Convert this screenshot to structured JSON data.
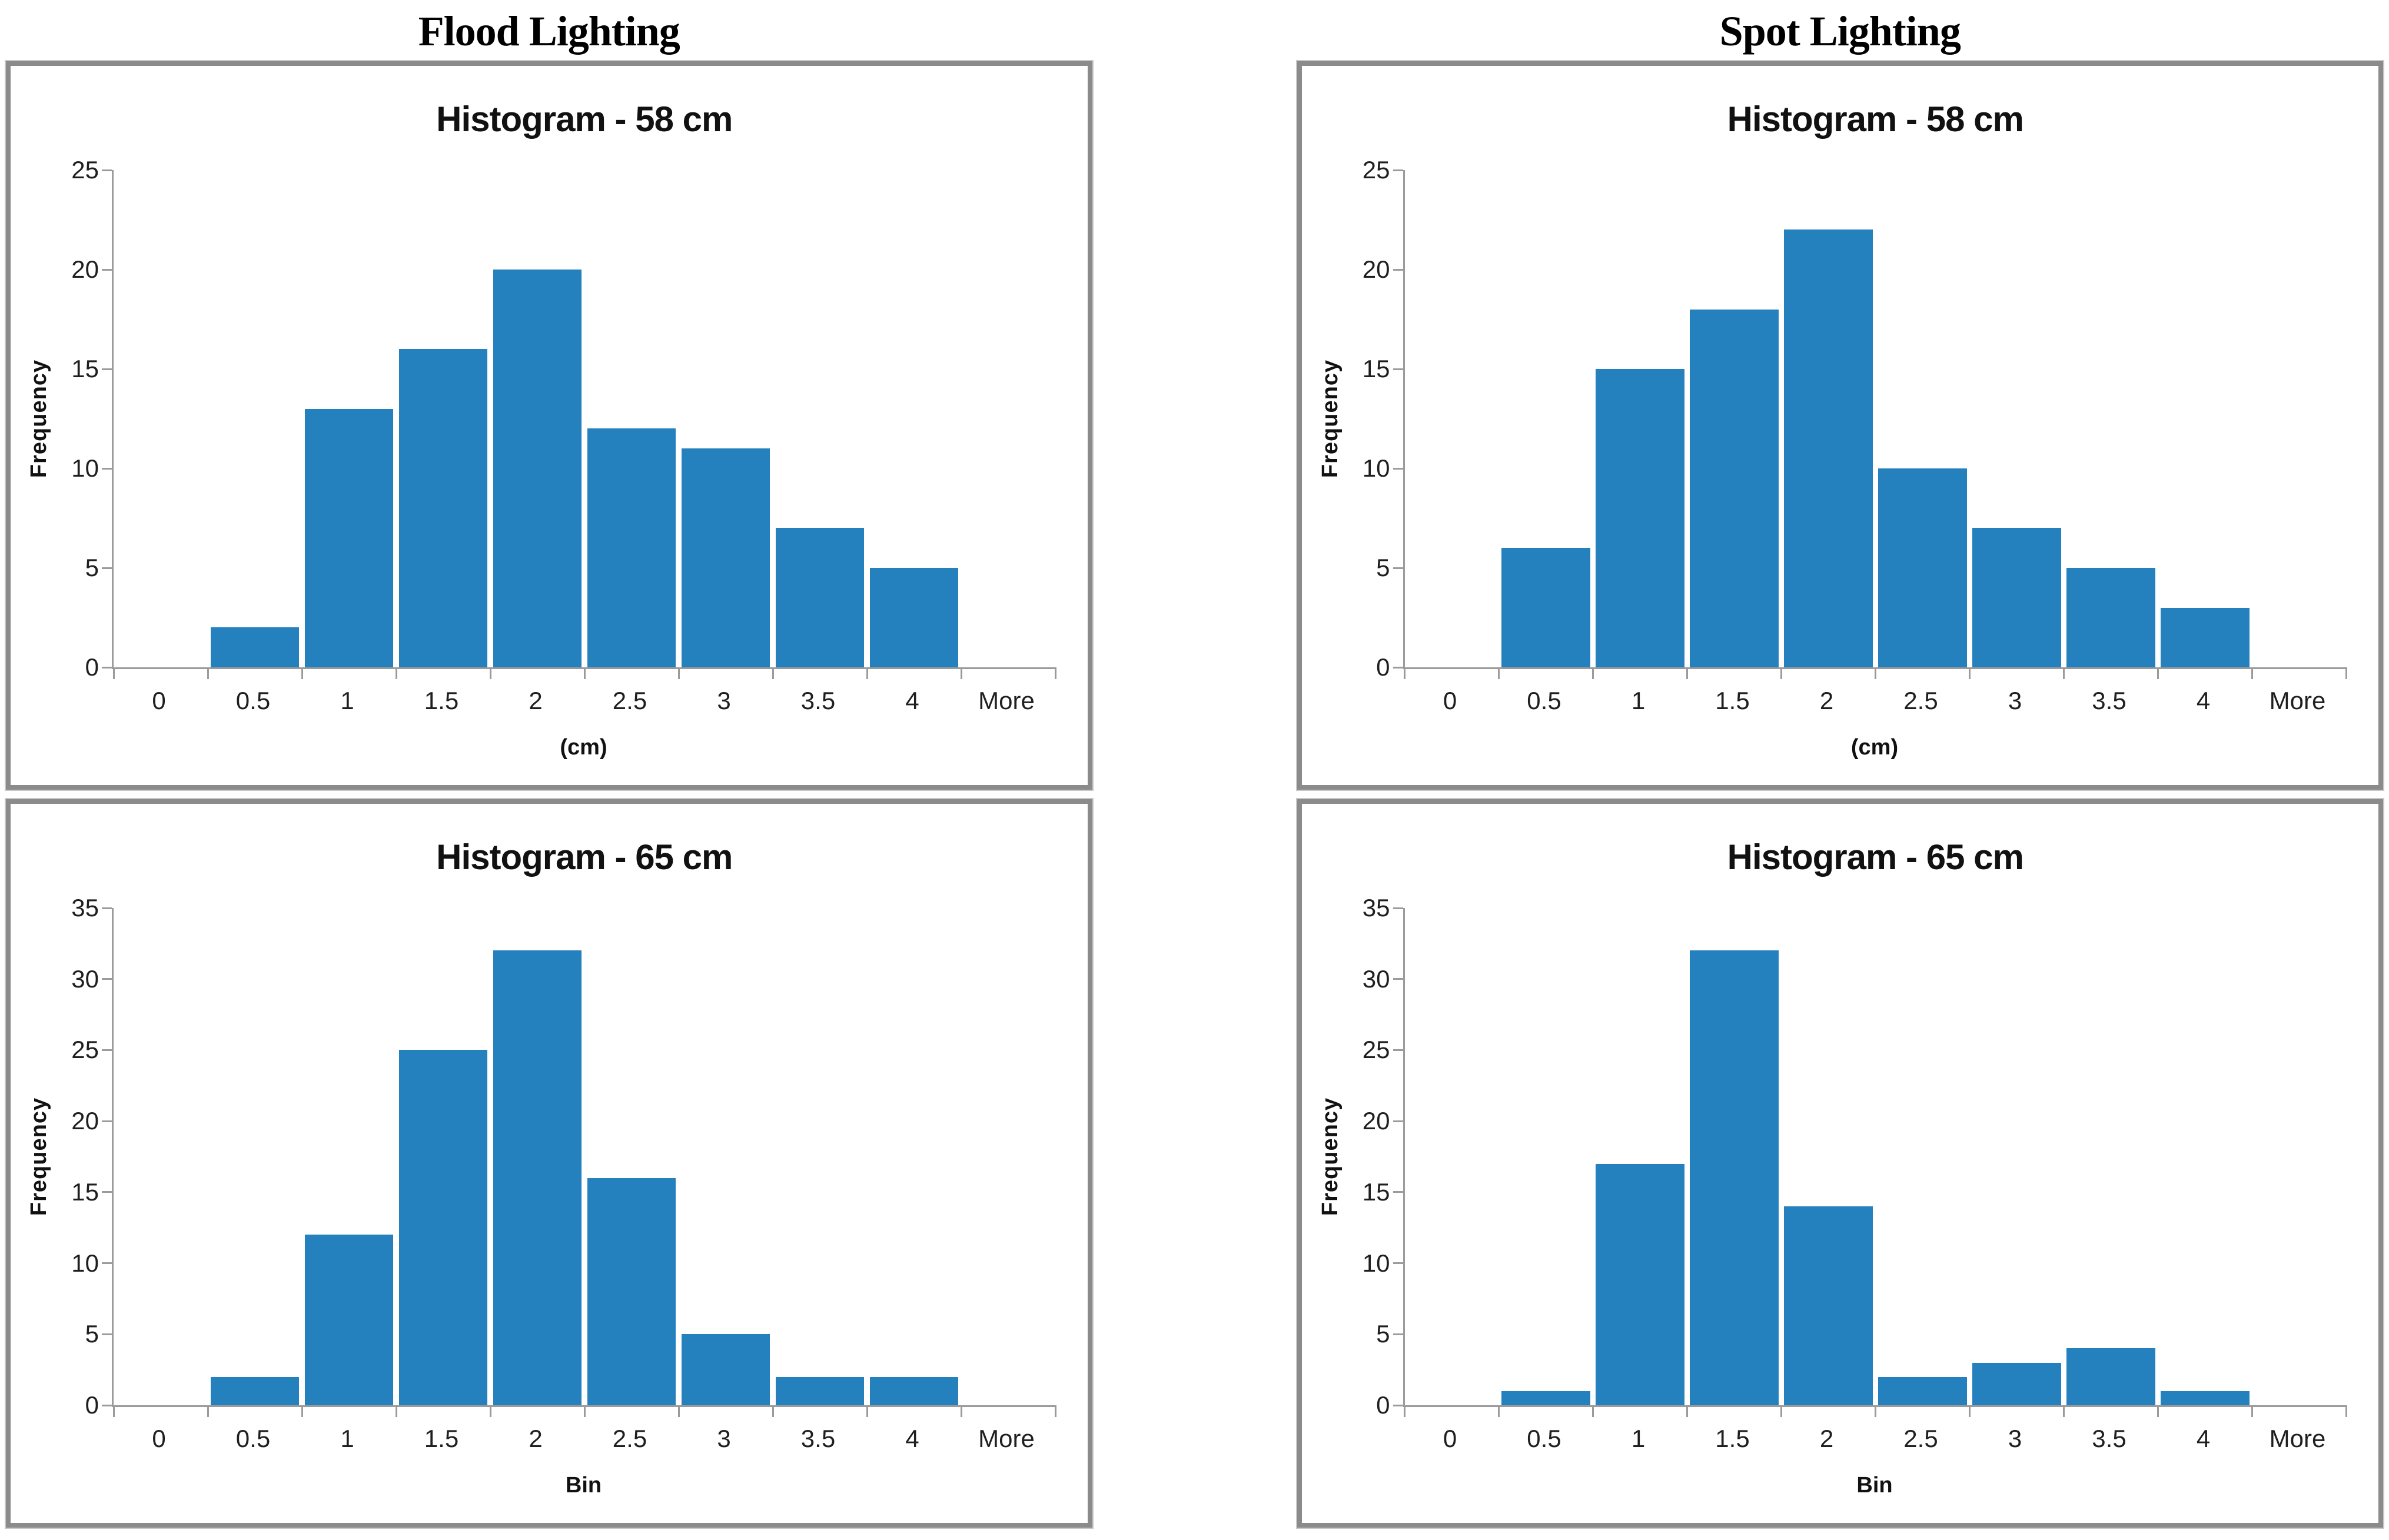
{
  "headers": [
    "Flood Lighting",
    "Spot Lighting"
  ],
  "colors": {
    "bar": "#2580BE",
    "axis": "#9B9B9B",
    "panel_border": "#8B8B8B",
    "text": "#1F1F1F"
  },
  "chart_data": [
    {
      "type": "bar",
      "group": "Flood Lighting",
      "title": "Histogram - 58 cm",
      "categories": [
        "0",
        "0.5",
        "1",
        "1.5",
        "2",
        "2.5",
        "3",
        "3.5",
        "4",
        "More"
      ],
      "values": [
        0,
        2,
        13,
        16,
        20,
        12,
        11,
        7,
        5,
        0
      ],
      "xlabel": "(cm)",
      "ylabel": "Frequency",
      "ylim": [
        0,
        25
      ],
      "yticks": [
        0,
        5,
        10,
        15,
        20,
        25
      ],
      "grid": false,
      "legend": false
    },
    {
      "type": "bar",
      "group": "Spot Lighting",
      "title": "Histogram - 58 cm",
      "categories": [
        "0",
        "0.5",
        "1",
        "1.5",
        "2",
        "2.5",
        "3",
        "3.5",
        "4",
        "More"
      ],
      "values": [
        0,
        6,
        15,
        18,
        22,
        10,
        7,
        5,
        3,
        0
      ],
      "xlabel": "(cm)",
      "ylabel": "Frequency",
      "ylim": [
        0,
        25
      ],
      "yticks": [
        0,
        5,
        10,
        15,
        20,
        25
      ],
      "grid": false,
      "legend": false
    },
    {
      "type": "bar",
      "group": "Flood Lighting",
      "title": "Histogram - 65 cm",
      "categories": [
        "0",
        "0.5",
        "1",
        "1.5",
        "2",
        "2.5",
        "3",
        "3.5",
        "4",
        "More"
      ],
      "values": [
        0,
        2,
        12,
        25,
        32,
        16,
        5,
        2,
        2,
        0
      ],
      "xlabel": "Bin",
      "ylabel": "Frequency",
      "ylim": [
        0,
        35
      ],
      "yticks": [
        0,
        5,
        10,
        15,
        20,
        25,
        30,
        35
      ],
      "grid": false,
      "legend": false
    },
    {
      "type": "bar",
      "group": "Spot Lighting",
      "title": "Histogram - 65 cm",
      "categories": [
        "0",
        "0.5",
        "1",
        "1.5",
        "2",
        "2.5",
        "3",
        "3.5",
        "4",
        "More"
      ],
      "values": [
        0,
        1,
        17,
        32,
        14,
        2,
        3,
        4,
        1,
        0
      ],
      "xlabel": "Bin",
      "ylabel": "Frequency",
      "ylim": [
        0,
        35
      ],
      "yticks": [
        0,
        5,
        10,
        15,
        20,
        25,
        30,
        35
      ],
      "grid": false,
      "legend": false
    }
  ]
}
